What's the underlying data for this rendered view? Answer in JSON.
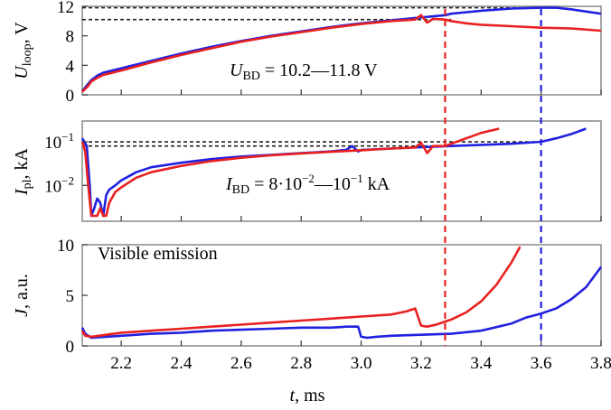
{
  "chart_data": [
    {
      "type": "line",
      "panel": "top",
      "ylabel": {
        "main": "U",
        "sub": "loop",
        "unit": ", V"
      },
      "xlim": [
        2.07,
        3.8
      ],
      "ylim": [
        0,
        12
      ],
      "yscale": "linear",
      "yticks": [
        0,
        4,
        8,
        12
      ],
      "ytick_labels": [
        "0",
        "4",
        "8",
        "12"
      ],
      "annotation": {
        "main": "U",
        "sub": "BD",
        "rest": " = 10.2—11.8 V"
      },
      "reference_lines": [
        {
          "y": 11.8,
          "x_from": 2.07,
          "x_to": 3.6
        },
        {
          "y": 10.2,
          "x_from": 2.07,
          "x_to": 3.3
        }
      ],
      "series": [
        {
          "color": "#2020e0",
          "x": [
            2.07,
            2.09,
            2.1,
            2.12,
            2.14,
            2.2,
            2.3,
            2.4,
            2.5,
            2.6,
            2.7,
            2.8,
            2.9,
            3.0,
            3.1,
            3.2,
            3.28,
            3.3,
            3.4,
            3.5,
            3.6,
            3.65,
            3.7,
            3.8
          ],
          "y": [
            0.5,
            1.5,
            2.0,
            2.6,
            3.0,
            3.6,
            4.6,
            5.6,
            6.5,
            7.3,
            8.0,
            8.6,
            9.2,
            9.7,
            10.1,
            10.5,
            10.8,
            11.0,
            11.4,
            11.7,
            11.8,
            11.8,
            11.6,
            11.0
          ]
        },
        {
          "color": "#e82020",
          "x": [
            2.07,
            2.09,
            2.1,
            2.12,
            2.14,
            2.2,
            2.3,
            2.4,
            2.5,
            2.6,
            2.7,
            2.8,
            2.9,
            3.0,
            3.1,
            3.18,
            3.2,
            3.22,
            3.24,
            3.28,
            3.3,
            3.35,
            3.4,
            3.5,
            3.6,
            3.7,
            3.8
          ],
          "y": [
            0.4,
            1.2,
            1.8,
            2.3,
            2.7,
            3.3,
            4.4,
            5.4,
            6.3,
            7.2,
            7.9,
            8.5,
            9.1,
            9.6,
            10.0,
            10.2,
            10.8,
            9.8,
            10.3,
            10.2,
            10.0,
            9.7,
            9.5,
            9.3,
            9.1,
            9.0,
            8.7
          ]
        }
      ]
    },
    {
      "type": "line",
      "panel": "middle",
      "ylabel": {
        "main": "I",
        "sub": "pl",
        "unit": ", kA"
      },
      "xlim": [
        2.07,
        3.8
      ],
      "ylim": [
        0.0015,
        0.3
      ],
      "yscale": "log",
      "yticks": [
        0.01,
        0.1
      ],
      "ytick_labels": [
        {
          "base": "10",
          "exp": "−2"
        },
        {
          "base": "10",
          "exp": "−1"
        }
      ],
      "annotation": {
        "main": "I",
        "sub": "BD",
        "rest": " = 8·10",
        "exp1": "−2",
        "mid": "—10",
        "exp2": "−1",
        "unit": " kA"
      },
      "reference_lines": [
        {
          "y": 0.1,
          "x_from": 2.07,
          "x_to": 3.6
        },
        {
          "y": 0.08,
          "x_from": 2.07,
          "x_to": 3.3
        }
      ],
      "series": [
        {
          "color": "#2020e0",
          "x": [
            2.07,
            2.085,
            2.095,
            2.1,
            2.11,
            2.12,
            2.13,
            2.14,
            2.15,
            2.16,
            2.18,
            2.2,
            2.25,
            2.3,
            2.4,
            2.5,
            2.6,
            2.7,
            2.8,
            2.9,
            2.95,
            2.97,
            2.99,
            3.0,
            3.1,
            3.2,
            3.3,
            3.4,
            3.5,
            3.6,
            3.65,
            3.7,
            3.75
          ],
          "y": [
            0.12,
            0.08,
            0.01,
            0.002,
            0.003,
            0.005,
            0.004,
            0.002,
            0.006,
            0.008,
            0.01,
            0.013,
            0.02,
            0.026,
            0.033,
            0.04,
            0.046,
            0.05,
            0.055,
            0.06,
            0.065,
            0.08,
            0.06,
            0.065,
            0.07,
            0.075,
            0.08,
            0.085,
            0.09,
            0.1,
            0.12,
            0.15,
            0.2
          ]
        },
        {
          "color": "#e82020",
          "x": [
            2.07,
            2.08,
            2.09,
            2.1,
            2.11,
            2.12,
            2.13,
            2.14,
            2.15,
            2.16,
            2.18,
            2.2,
            2.25,
            2.3,
            2.4,
            2.5,
            2.6,
            2.7,
            2.8,
            2.9,
            3.0,
            3.1,
            3.18,
            3.2,
            3.22,
            3.24,
            3.28,
            3.3,
            3.35,
            3.4,
            3.46
          ],
          "y": [
            0.1,
            0.06,
            0.01,
            0.002,
            0.002,
            0.002,
            0.003,
            0.002,
            0.002,
            0.004,
            0.007,
            0.009,
            0.015,
            0.02,
            0.028,
            0.036,
            0.043,
            0.049,
            0.054,
            0.059,
            0.064,
            0.07,
            0.074,
            0.095,
            0.055,
            0.08,
            0.08,
            0.09,
            0.12,
            0.16,
            0.2
          ]
        }
      ]
    },
    {
      "type": "line",
      "panel": "bottom",
      "ylabel": {
        "main": "J",
        "sub": "",
        "unit": ", a.u."
      },
      "xlabel": {
        "main": "t",
        "unit": ", ms"
      },
      "xlim": [
        2.07,
        3.8
      ],
      "ylim": [
        0,
        10
      ],
      "yscale": "linear",
      "yticks": [
        0,
        5,
        10
      ],
      "ytick_labels": [
        "0",
        "5",
        "10"
      ],
      "xticks": [
        2.2,
        2.4,
        2.6,
        2.8,
        3.0,
        3.2,
        3.4,
        3.6,
        3.8
      ],
      "xtick_labels": [
        "2.2",
        "2.4",
        "2.6",
        "2.8",
        "3.0",
        "3.2",
        "3.4",
        "3.6",
        "3.8"
      ],
      "annotation_text": "Visible emission",
      "series": [
        {
          "color": "#2020e0",
          "x": [
            2.07,
            2.08,
            2.1,
            2.15,
            2.2,
            2.3,
            2.4,
            2.5,
            2.6,
            2.7,
            2.8,
            2.9,
            2.95,
            2.99,
            3.0,
            3.02,
            3.05,
            3.1,
            3.2,
            3.3,
            3.4,
            3.5,
            3.55,
            3.6,
            3.65,
            3.7,
            3.75,
            3.8
          ],
          "y": [
            1.8,
            1.2,
            0.8,
            0.9,
            1.0,
            1.2,
            1.3,
            1.5,
            1.6,
            1.7,
            1.8,
            1.8,
            1.9,
            1.9,
            0.9,
            0.8,
            0.9,
            1.0,
            1.1,
            1.2,
            1.5,
            2.2,
            2.8,
            3.2,
            3.7,
            4.6,
            5.8,
            7.8
          ]
        },
        {
          "color": "#e82020",
          "x": [
            2.07,
            2.08,
            2.1,
            2.15,
            2.2,
            2.3,
            2.4,
            2.5,
            2.6,
            2.7,
            2.8,
            2.9,
            3.0,
            3.1,
            3.15,
            3.18,
            3.2,
            3.22,
            3.25,
            3.3,
            3.35,
            3.4,
            3.45,
            3.5,
            3.53
          ],
          "y": [
            1.5,
            1.0,
            0.9,
            1.1,
            1.3,
            1.5,
            1.7,
            1.9,
            2.1,
            2.3,
            2.5,
            2.7,
            2.9,
            3.1,
            3.4,
            3.7,
            2.0,
            1.9,
            2.1,
            2.6,
            3.3,
            4.4,
            6.0,
            8.2,
            9.8
          ]
        }
      ]
    }
  ],
  "markers": [
    {
      "x": 3.28,
      "color": "#e82020"
    },
    {
      "x": 3.6,
      "color": "#2020e0"
    }
  ]
}
